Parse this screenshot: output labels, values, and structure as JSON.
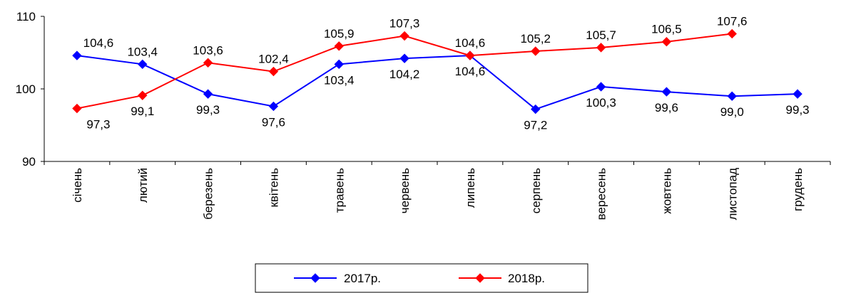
{
  "chart_data": {
    "type": "line",
    "categories": [
      "січень",
      "лютий",
      "березень",
      "квітень",
      "травень",
      "червень",
      "липень",
      "серпень",
      "вересень",
      "жовтень",
      "листопад",
      "грудень"
    ],
    "series": [
      {
        "name": "2017р.",
        "color": "#0000ff",
        "values": [
          104.6,
          103.4,
          99.3,
          97.6,
          103.4,
          104.2,
          104.6,
          97.2,
          100.3,
          99.6,
          99.0,
          99.3
        ],
        "labels": [
          "104,6",
          "103,4",
          "99,3",
          "97,6",
          "103,4",
          "104,2",
          "104,6",
          "97,2",
          "100,3",
          "99,6",
          "99,0",
          "99,3"
        ]
      },
      {
        "name": "2018р.",
        "color": "#ff0000",
        "values": [
          97.3,
          99.1,
          103.6,
          102.4,
          105.9,
          107.3,
          104.6,
          105.2,
          105.7,
          106.5,
          107.6,
          null
        ],
        "labels": [
          "97,3",
          "99,1",
          "103,6",
          "102,4",
          "105,9",
          "107,3",
          "104,6",
          "105,2",
          "105,7",
          "106,5",
          "107,6",
          ""
        ]
      }
    ],
    "yticks": [
      "90",
      "100",
      "110"
    ],
    "ylim": [
      90,
      110
    ],
    "legend_position": "bottom",
    "grid": false
  }
}
